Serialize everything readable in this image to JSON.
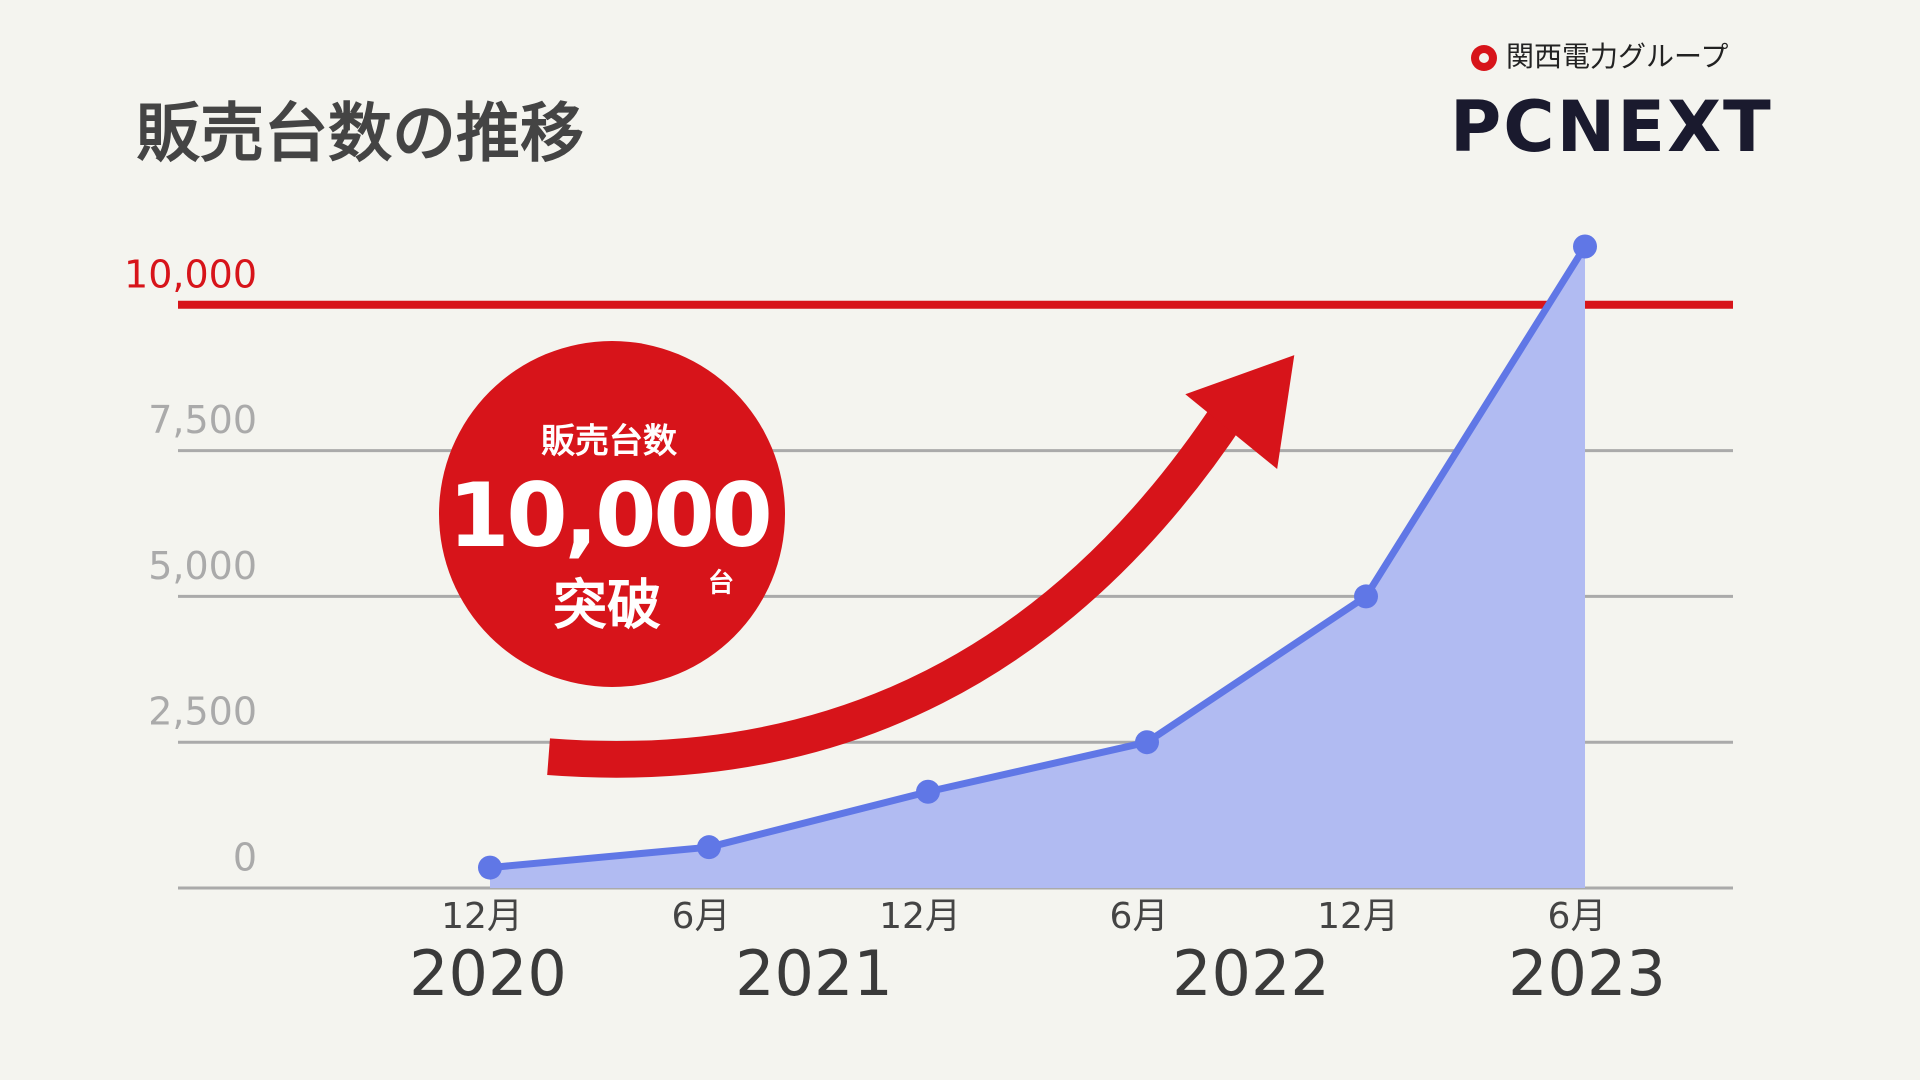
{
  "title": "販売台数の推移",
  "logo": {
    "group": "関西電力グループ",
    "brand": "PCNEXT"
  },
  "badge": {
    "label": "販売台数",
    "number": "10,000",
    "unit": "台",
    "caption": "突破"
  },
  "chart_data": {
    "type": "area",
    "categories": [
      "12月",
      "6月",
      "12月",
      "6月",
      "12月",
      "6月"
    ],
    "year_labels": [
      "2020",
      "2021",
      "2022",
      "2023"
    ],
    "values": [
      350,
      700,
      1650,
      2500,
      5000,
      11000
    ],
    "color": "#6077e6",
    "fill_color": "#b1bbf2",
    "ylim": [
      0,
      12500
    ],
    "yticks": [
      0,
      {
        "value": 2500,
        "label": "2,500"
      },
      {
        "value": 5000,
        "label": "5,000"
      },
      {
        "value": 7500,
        "label": "7,500"
      },
      {
        "value": 10000,
        "label": "10,000"
      }
    ],
    "grid": true,
    "reference_line": {
      "value": 10000,
      "color": "#d7141a"
    }
  }
}
